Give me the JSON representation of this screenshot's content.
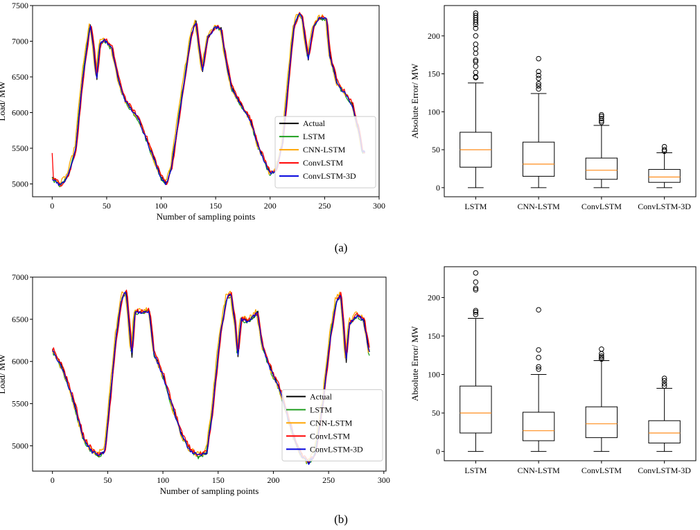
{
  "panel_labels": [
    "(a)",
    "(b)"
  ],
  "colors": {
    "Actual": "#000000",
    "LSTM": "#1f9e1f",
    "CNN-LSTM": "#ffa500",
    "ConvLSTM": "#ff0000",
    "ConvLSTM-3D": "#0000dd",
    "median": "#ff8c1a"
  },
  "chart_data": [
    {
      "id": "a-line",
      "type": "line",
      "xlabel": "Number of sampling points",
      "ylabel": "Load/ MW",
      "xlim": [
        -18,
        300
      ],
      "ylim": [
        4820,
        7500
      ],
      "xticks": [
        0,
        50,
        100,
        150,
        200,
        250,
        300
      ],
      "yticks": [
        5000,
        5500,
        6000,
        6500,
        7000,
        7500
      ],
      "legend": [
        "Actual",
        "LSTM",
        "CNN-LSTM",
        "ConvLSTM",
        "ConvLSTM-3D"
      ],
      "legend_position": "center-right",
      "n_points": 288,
      "actual_keypoints": [
        [
          0,
          5090
        ],
        [
          8,
          4980
        ],
        [
          15,
          5120
        ],
        [
          22,
          5500
        ],
        [
          28,
          6450
        ],
        [
          33,
          7000
        ],
        [
          35,
          7230
        ],
        [
          38,
          6950
        ],
        [
          41,
          6450
        ],
        [
          44,
          6950
        ],
        [
          48,
          7030
        ],
        [
          55,
          6900
        ],
        [
          62,
          6400
        ],
        [
          68,
          6150
        ],
        [
          80,
          5900
        ],
        [
          90,
          5500
        ],
        [
          100,
          5100
        ],
        [
          105,
          5000
        ],
        [
          110,
          5250
        ],
        [
          120,
          6300
        ],
        [
          128,
          7100
        ],
        [
          132,
          7280
        ],
        [
          138,
          6580
        ],
        [
          143,
          7050
        ],
        [
          150,
          7200
        ],
        [
          155,
          7180
        ],
        [
          160,
          6700
        ],
        [
          165,
          6350
        ],
        [
          172,
          6150
        ],
        [
          182,
          5900
        ],
        [
          190,
          5500
        ],
        [
          200,
          5150
        ],
        [
          206,
          5200
        ],
        [
          212,
          5600
        ],
        [
          218,
          6600
        ],
        [
          222,
          7200
        ],
        [
          227,
          7400
        ],
        [
          230,
          7300
        ],
        [
          235,
          6750
        ],
        [
          240,
          7200
        ],
        [
          245,
          7320
        ],
        [
          252,
          7320
        ],
        [
          255,
          6800
        ],
        [
          262,
          6400
        ],
        [
          270,
          6250
        ],
        [
          276,
          6100
        ],
        [
          282,
          5700
        ],
        [
          285,
          5450
        ]
      ]
    },
    {
      "id": "a-box",
      "type": "box",
      "ylabel": "Absolute Error/ MW",
      "categories": [
        "LSTM",
        "CNN-LSTM",
        "ConvLSTM",
        "ConvLSTM-3D"
      ],
      "ylim": [
        -12,
        240
      ],
      "yticks": [
        0,
        50,
        100,
        150,
        200
      ],
      "boxes": [
        {
          "q1": 27,
          "median": 50,
          "q3": 73,
          "whisker_low": 0,
          "whisker_high": 138,
          "outliers": [
            145,
            146,
            152,
            160,
            166,
            168,
            177,
            183,
            189,
            200,
            210,
            215,
            218,
            221,
            224,
            227,
            230
          ]
        },
        {
          "q1": 15,
          "median": 31,
          "q3": 60,
          "whisker_low": 0,
          "whisker_high": 124,
          "outliers": [
            130,
            134,
            137,
            144,
            148,
            153,
            170
          ]
        },
        {
          "q1": 11,
          "median": 23,
          "q3": 39,
          "whisker_low": 0,
          "whisker_high": 82,
          "outliers": [
            86,
            88,
            91,
            94,
            96
          ]
        },
        {
          "q1": 7,
          "median": 14,
          "q3": 24,
          "whisker_low": 0,
          "whisker_high": 46,
          "outliers": [
            48,
            50,
            54
          ]
        }
      ]
    },
    {
      "id": "b-line",
      "type": "line",
      "xlabel": "Number of sampling points",
      "ylabel": "Load/ MW",
      "xlim": [
        -18,
        302
      ],
      "ylim": [
        4700,
        7000
      ],
      "xticks": [
        0,
        50,
        100,
        150,
        200,
        250,
        300
      ],
      "yticks": [
        5000,
        5500,
        6000,
        6500,
        7000
      ],
      "legend": [
        "Actual",
        "LSTM",
        "CNN-LSTM",
        "ConvLSTM",
        "ConvLSTM-3D"
      ],
      "legend_position": "center-right",
      "n_points": 288,
      "actual_keypoints": [
        [
          0,
          6150
        ],
        [
          10,
          5900
        ],
        [
          20,
          5500
        ],
        [
          28,
          5100
        ],
        [
          35,
          4950
        ],
        [
          42,
          4880
        ],
        [
          48,
          4950
        ],
        [
          52,
          5500
        ],
        [
          58,
          6300
        ],
        [
          63,
          6750
        ],
        [
          67,
          6830
        ],
        [
          70,
          6400
        ],
        [
          72,
          6050
        ],
        [
          75,
          6600
        ],
        [
          80,
          6580
        ],
        [
          88,
          6600
        ],
        [
          92,
          6100
        ],
        [
          100,
          5850
        ],
        [
          108,
          5500
        ],
        [
          118,
          5100
        ],
        [
          125,
          4950
        ],
        [
          132,
          4880
        ],
        [
          140,
          4920
        ],
        [
          145,
          5400
        ],
        [
          152,
          6300
        ],
        [
          158,
          6750
        ],
        [
          162,
          6800
        ],
        [
          166,
          6400
        ],
        [
          168,
          6050
        ],
        [
          171,
          6500
        ],
        [
          178,
          6480
        ],
        [
          186,
          6580
        ],
        [
          190,
          6200
        ],
        [
          198,
          5900
        ],
        [
          205,
          5700
        ],
        [
          212,
          5400
        ],
        [
          220,
          5050
        ],
        [
          226,
          4880
        ],
        [
          232,
          4800
        ],
        [
          238,
          4900
        ],
        [
          245,
          5500
        ],
        [
          252,
          6300
        ],
        [
          257,
          6700
        ],
        [
          261,
          6800
        ],
        [
          264,
          6400
        ],
        [
          266,
          6000
        ],
        [
          269,
          6450
        ],
        [
          276,
          6550
        ],
        [
          282,
          6500
        ],
        [
          287,
          6100
        ]
      ]
    },
    {
      "id": "b-box",
      "type": "box",
      "ylabel": "Absolute Error/ MW",
      "categories": [
        "LSTM",
        "CNN-LSTM",
        "ConvLSTM",
        "ConvLSTM-3D"
      ],
      "ylim": [
        -12,
        240
      ],
      "yticks": [
        0,
        50,
        100,
        150,
        200
      ],
      "boxes": [
        {
          "q1": 24,
          "median": 50,
          "q3": 85,
          "whisker_low": 0,
          "whisker_high": 173,
          "outliers": [
            178,
            181,
            183,
            210,
            212,
            220,
            232
          ]
        },
        {
          "q1": 14,
          "median": 27,
          "q3": 51,
          "whisker_low": 0,
          "whisker_high": 100,
          "outliers": [
            107,
            110,
            122,
            132,
            184
          ]
        },
        {
          "q1": 18,
          "median": 36,
          "q3": 58,
          "whisker_low": 0,
          "whisker_high": 118,
          "outliers": [
            120,
            122,
            124,
            127,
            133
          ]
        },
        {
          "q1": 11,
          "median": 24,
          "q3": 40,
          "whisker_low": 0,
          "whisker_high": 82,
          "outliers": [
            85,
            88,
            92,
            95
          ]
        }
      ]
    }
  ]
}
